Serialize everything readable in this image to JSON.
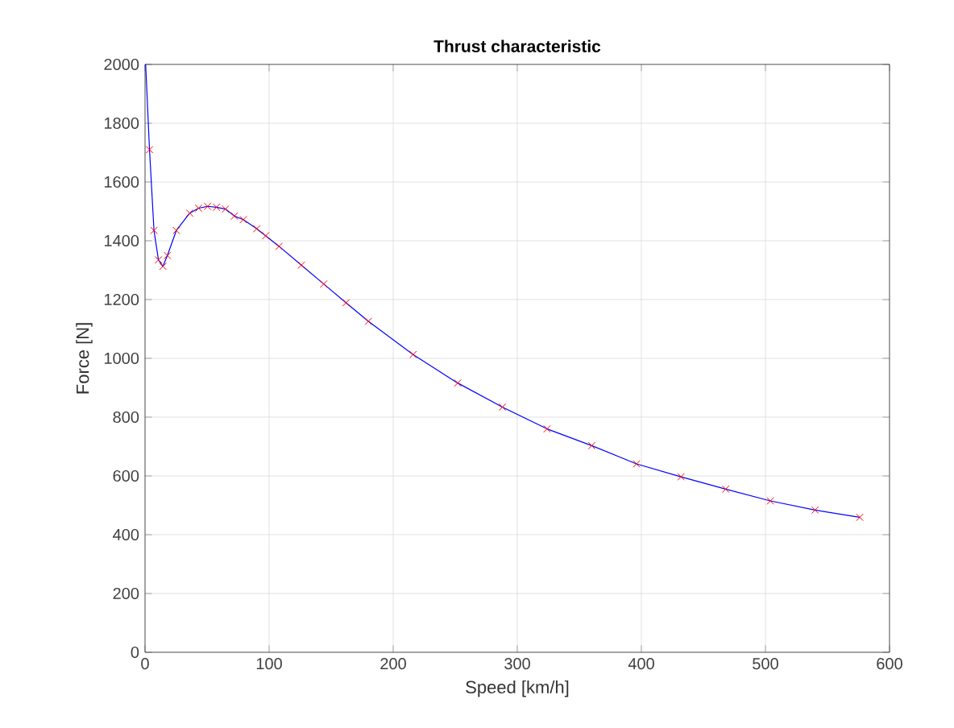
{
  "chart_data": {
    "type": "line",
    "title": "Thrust characteristic",
    "xlabel": "Speed [km/h]",
    "ylabel": "Force [N]",
    "xlim": [
      0,
      600
    ],
    "ylim": [
      0,
      2000
    ],
    "xticks": [
      0,
      100,
      200,
      300,
      400,
      500,
      600
    ],
    "yticks": [
      0,
      200,
      400,
      600,
      800,
      1000,
      1200,
      1400,
      1600,
      1800,
      2000
    ],
    "grid": true,
    "series": [
      {
        "color": "#0000ff",
        "marker": "none",
        "x": [
          0.5,
          3.6,
          7.2,
          10.8,
          14.4,
          18,
          25.2,
          36,
          43.2,
          50.4,
          57.6,
          64.8,
          72,
          79.2,
          90,
          97.2,
          108,
          126,
          144,
          162,
          180,
          216,
          252,
          288,
          324,
          360,
          396,
          432,
          468,
          504,
          540,
          576
        ],
        "values": [
          2000,
          1710,
          1435,
          1335,
          1313,
          1350,
          1435,
          1494,
          1511,
          1517,
          1514,
          1508,
          1484,
          1472,
          1441,
          1417,
          1381,
          1317,
          1253,
          1189,
          1126,
          1013,
          916,
          834,
          760,
          703,
          641,
          597,
          555,
          515,
          484,
          459
        ]
      },
      {
        "type": "scatter",
        "color": "#ff0000",
        "marker": "cross",
        "x": [
          3.6,
          7.2,
          10.8,
          14.4,
          18,
          25.2,
          36,
          43.2,
          50.4,
          57.6,
          64.8,
          72,
          79.2,
          90,
          97.2,
          108,
          126,
          144,
          162,
          180,
          216,
          252,
          288,
          324,
          360,
          396,
          432,
          468,
          504,
          540,
          576
        ],
        "values": [
          1710,
          1435,
          1335,
          1313,
          1350,
          1435,
          1494,
          1511,
          1517,
          1514,
          1508,
          1484,
          1472,
          1441,
          1417,
          1381,
          1317,
          1253,
          1189,
          1126,
          1013,
          916,
          834,
          760,
          703,
          641,
          597,
          555,
          515,
          484,
          459
        ]
      }
    ]
  }
}
